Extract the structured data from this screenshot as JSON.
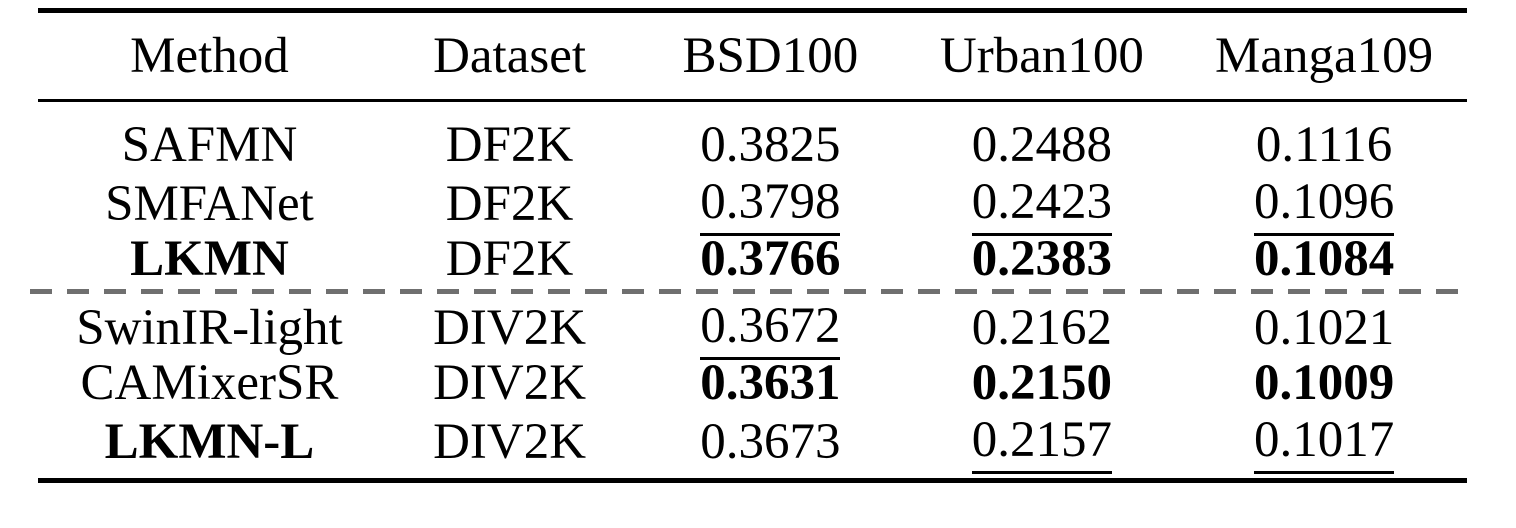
{
  "figure": {
    "background_color": "#ffffff",
    "text_color": "#000000",
    "divider_color": "#6f6f6f"
  },
  "table": {
    "headers": [
      "Method",
      "Dataset",
      "BSD100",
      "Urban100",
      "Manga109"
    ],
    "rows": [
      {
        "cells": [
          {
            "text": "SAFMN",
            "emphasis": "plain"
          },
          {
            "text": "DF2K",
            "emphasis": "plain"
          },
          {
            "text": "0.3825",
            "emphasis": "plain"
          },
          {
            "text": "0.2488",
            "emphasis": "plain"
          },
          {
            "text": "0.1116",
            "emphasis": "plain"
          }
        ]
      },
      {
        "cells": [
          {
            "text": "SMFANet",
            "emphasis": "plain"
          },
          {
            "text": "DF2K",
            "emphasis": "plain"
          },
          {
            "text": "0.3798",
            "emphasis": "underline"
          },
          {
            "text": "0.2423",
            "emphasis": "underline"
          },
          {
            "text": "0.1096",
            "emphasis": "underline"
          }
        ]
      },
      {
        "cells": [
          {
            "text": "LKMN",
            "emphasis": "bold"
          },
          {
            "text": "DF2K",
            "emphasis": "plain"
          },
          {
            "text": "0.3766",
            "emphasis": "bold"
          },
          {
            "text": "0.2383",
            "emphasis": "bold"
          },
          {
            "text": "0.1084",
            "emphasis": "bold"
          }
        ]
      },
      {
        "cells": [
          {
            "text": "SwinIR-light",
            "emphasis": "plain"
          },
          {
            "text": "DIV2K",
            "emphasis": "plain"
          },
          {
            "text": "0.3672",
            "emphasis": "underline"
          },
          {
            "text": "0.2162",
            "emphasis": "plain"
          },
          {
            "text": "0.1021",
            "emphasis": "plain"
          }
        ]
      },
      {
        "cells": [
          {
            "text": "CAMixerSR",
            "emphasis": "plain"
          },
          {
            "text": "DIV2K",
            "emphasis": "plain"
          },
          {
            "text": "0.3631",
            "emphasis": "bold"
          },
          {
            "text": "0.2150",
            "emphasis": "bold"
          },
          {
            "text": "0.1009",
            "emphasis": "bold"
          }
        ]
      },
      {
        "cells": [
          {
            "text": "LKMN-L",
            "emphasis": "bold"
          },
          {
            "text": "DIV2K",
            "emphasis": "plain"
          },
          {
            "text": "0.3673",
            "emphasis": "plain"
          },
          {
            "text": "0.2157",
            "emphasis": "underline"
          },
          {
            "text": "0.1017",
            "emphasis": "underline"
          }
        ]
      }
    ],
    "divider_after_row_index": 2
  }
}
